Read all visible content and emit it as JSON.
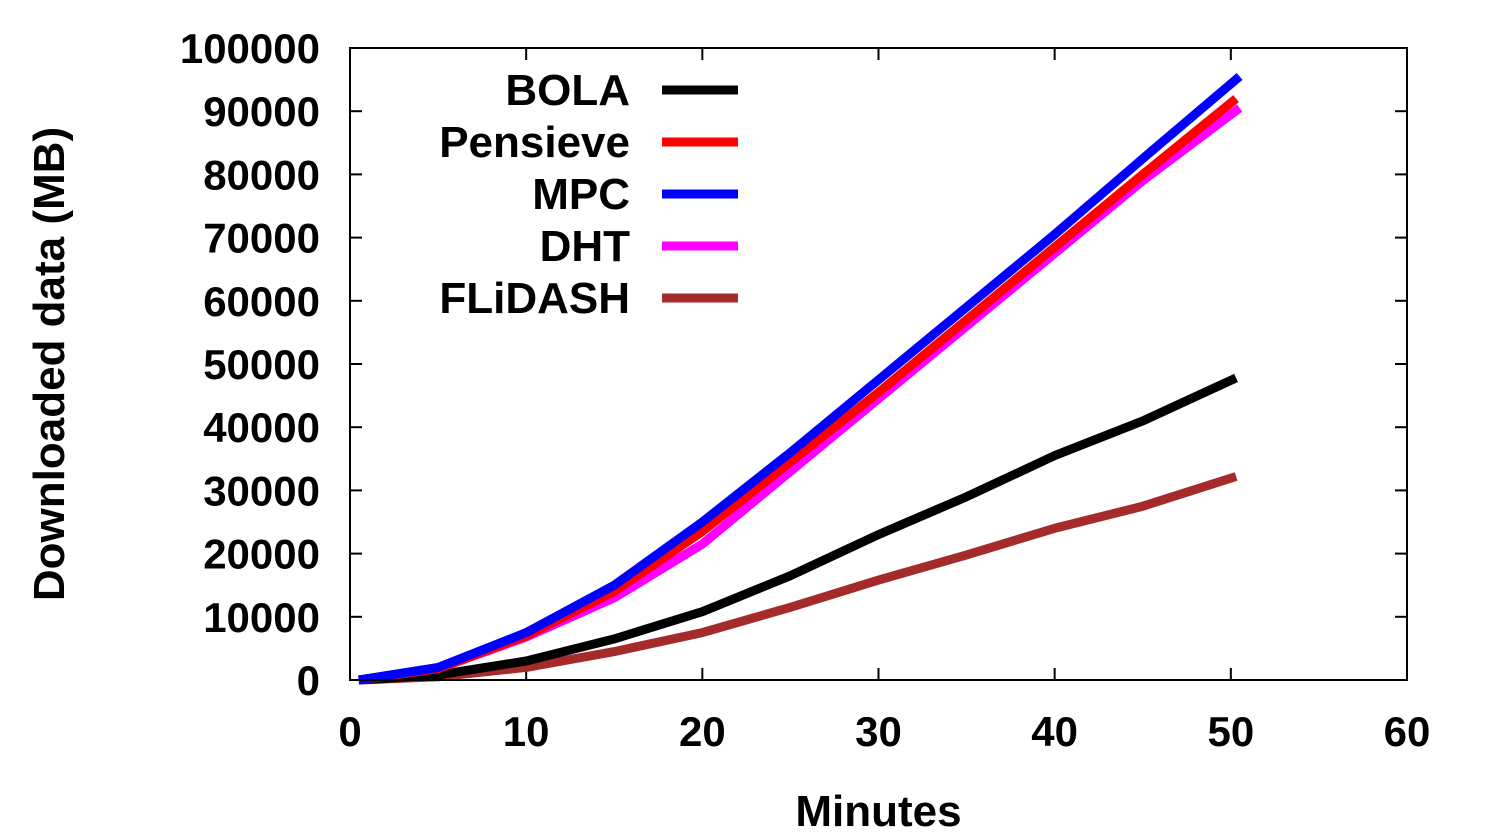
{
  "chart_data": {
    "type": "line",
    "title": "",
    "xlabel": "Minutes",
    "ylabel": "Downloaded data (MB)",
    "xlim": [
      0,
      60
    ],
    "ylim": [
      0,
      100000
    ],
    "xticks": [
      0,
      10,
      20,
      30,
      40,
      50,
      60
    ],
    "yticks": [
      0,
      10000,
      20000,
      30000,
      40000,
      50000,
      60000,
      70000,
      80000,
      90000,
      100000
    ],
    "grid": false,
    "legend_position": "top-left",
    "series": [
      {
        "name": "BOLA",
        "color": "#000000",
        "x": [
          0.5,
          5,
          10,
          15,
          20,
          25,
          30,
          35,
          40,
          45,
          50.3
        ],
        "y": [
          0,
          800,
          3000,
          6500,
          10800,
          16500,
          23000,
          29000,
          35500,
          41000,
          47800
        ]
      },
      {
        "name": "Pensieve",
        "color": "#ff0000",
        "x": [
          0.5,
          5,
          10,
          15,
          20,
          25,
          30,
          35,
          40,
          45,
          50.3
        ],
        "y": [
          0,
          1800,
          7000,
          14000,
          23500,
          34500,
          45500,
          57000,
          68500,
          80000,
          92000
        ]
      },
      {
        "name": "MPC",
        "color": "#0000ff",
        "x": [
          0.5,
          5,
          10,
          15,
          20,
          25,
          30,
          35,
          40,
          45,
          50.5
        ],
        "y": [
          0,
          2000,
          7500,
          15000,
          25000,
          36000,
          47500,
          59000,
          70500,
          82500,
          95500
        ]
      },
      {
        "name": "DHT",
        "color": "#ff00ff",
        "x": [
          0.5,
          5,
          10,
          15,
          20,
          25,
          30,
          35,
          40,
          45,
          50.5
        ],
        "y": [
          0,
          1800,
          6800,
          13000,
          21500,
          33000,
          44500,
          56000,
          67500,
          79000,
          90500
        ]
      },
      {
        "name": "FLiDASH",
        "color": "#a52a2a",
        "x": [
          0.5,
          5,
          10,
          15,
          20,
          25,
          30,
          35,
          40,
          45,
          50.3
        ],
        "y": [
          0,
          500,
          2000,
          4500,
          7500,
          11500,
          15800,
          19800,
          24000,
          27500,
          32200
        ]
      }
    ]
  }
}
